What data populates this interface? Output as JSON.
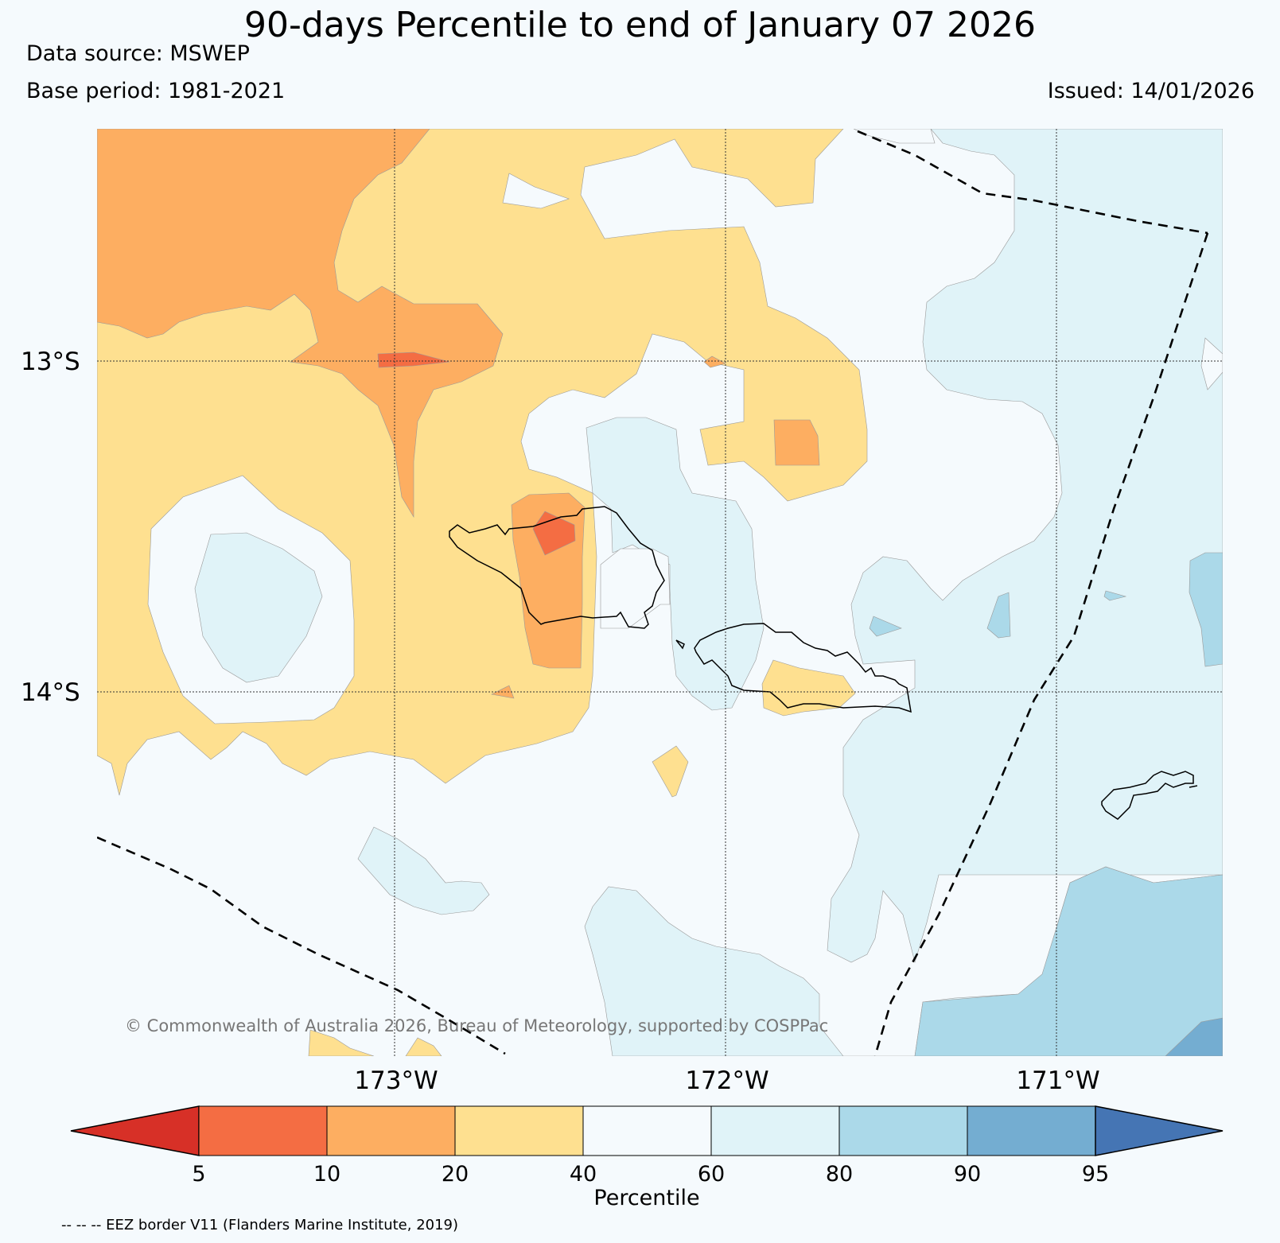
{
  "header": {
    "title": "90-days Percentile to end of January 07 2026",
    "data_source": "Data source: MSWEP",
    "base_period": "Base period: 1981-2021",
    "issued": "Issued: 14/01/2026"
  },
  "map": {
    "lat_labels": [
      "13°S",
      "14°S"
    ],
    "lon_labels": [
      "173°W",
      "172°W",
      "171°W"
    ],
    "copyright": "© Commonwealth of Australia 2026, Bureau of Meteorology, supported by COSPPac"
  },
  "legend": {
    "label": "Percentile",
    "ticks": [
      "5",
      "10",
      "20",
      "40",
      "60",
      "80",
      "90",
      "95"
    ],
    "colors": {
      "lt5": "#d73027",
      "p5_10": "#f46d43",
      "p10_20": "#fdae61",
      "p20_40": "#fee090",
      "p40_60": "#f5fafd",
      "p60_80": "#e0f3f8",
      "p80_90": "#abd9e9",
      "p90_95": "#74add1",
      "gt95": "#4575b4"
    }
  },
  "footer": {
    "eez_note": "-- -- -- EEZ border V11 (Flanders Marine Institute, 2019)"
  }
}
